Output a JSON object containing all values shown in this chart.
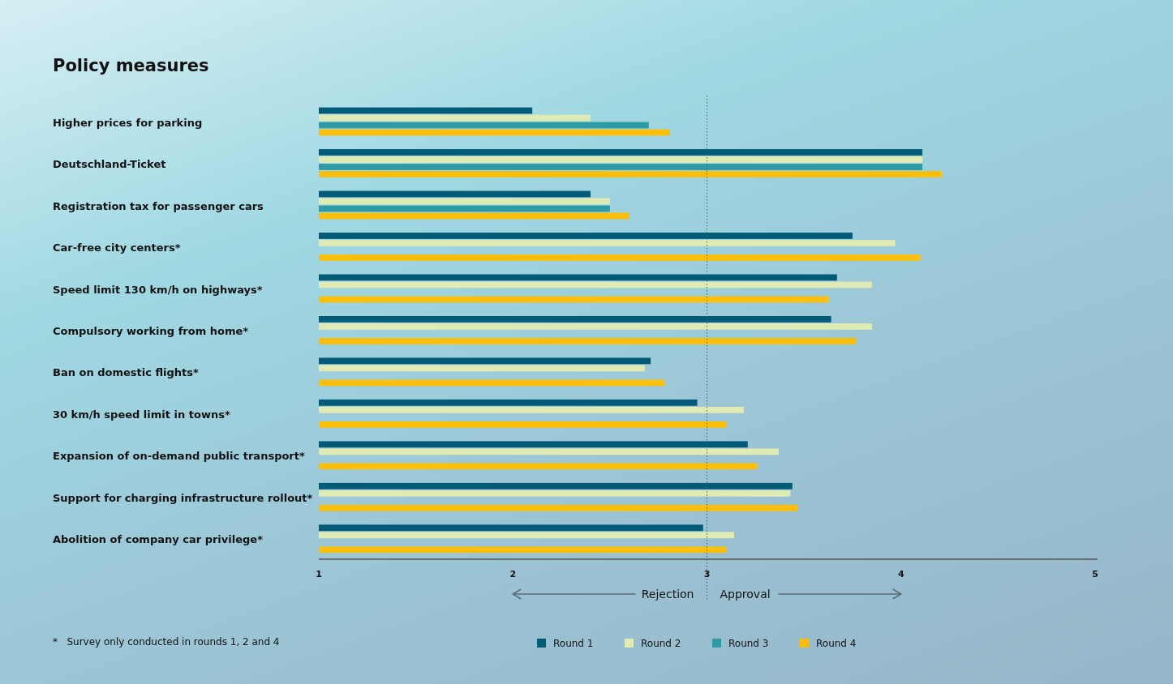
{
  "chart_data": {
    "type": "bar",
    "orientation": "horizontal",
    "title": "Policy measures",
    "categories": [
      "Higher prices for parking",
      "Deutschland-Ticket",
      "Registration tax for passenger cars",
      "Car-free city centers*",
      "Speed limit 130 km/h on highways*",
      "Compulsory working from home*",
      "Ban on domestic flights*",
      "30 km/h speed limit in towns*",
      "Expansion of on-demand public transport*",
      "Support for charging infrastructure rollout*",
      "Abolition of company car privilege*"
    ],
    "series": [
      {
        "name": "Round 1",
        "color": "#005a78",
        "values": [
          2.1,
          4.11,
          2.4,
          3.75,
          3.67,
          3.64,
          2.71,
          2.95,
          3.21,
          3.44,
          2.98
        ]
      },
      {
        "name": "Round 2",
        "color": "#dfeab4",
        "values": [
          2.4,
          4.11,
          2.5,
          3.97,
          3.85,
          3.85,
          2.68,
          3.19,
          3.37,
          3.43,
          3.14
        ]
      },
      {
        "name": "Round 3",
        "color": "#2e9aa6",
        "values": [
          2.7,
          4.11,
          2.5,
          null,
          null,
          null,
          null,
          null,
          null,
          null,
          null
        ]
      },
      {
        "name": "Round 4",
        "color": "#fbbf0a",
        "values": [
          2.81,
          4.21,
          2.6,
          4.1,
          3.63,
          3.77,
          2.78,
          3.1,
          3.26,
          3.47,
          3.1
        ]
      }
    ],
    "xlim": [
      1,
      5
    ],
    "xticks": [
      1,
      2,
      3,
      4,
      5
    ],
    "ref_lines": [
      {
        "axis": "x",
        "value": 3,
        "line_style": "dotted",
        "color": "#4a5a66"
      }
    ],
    "annotations": [
      "Rejection",
      "Approval",
      "*   Survey only conducted in rounds 1, 2 and 4"
    ],
    "legend": "bottom",
    "grid": false
  }
}
